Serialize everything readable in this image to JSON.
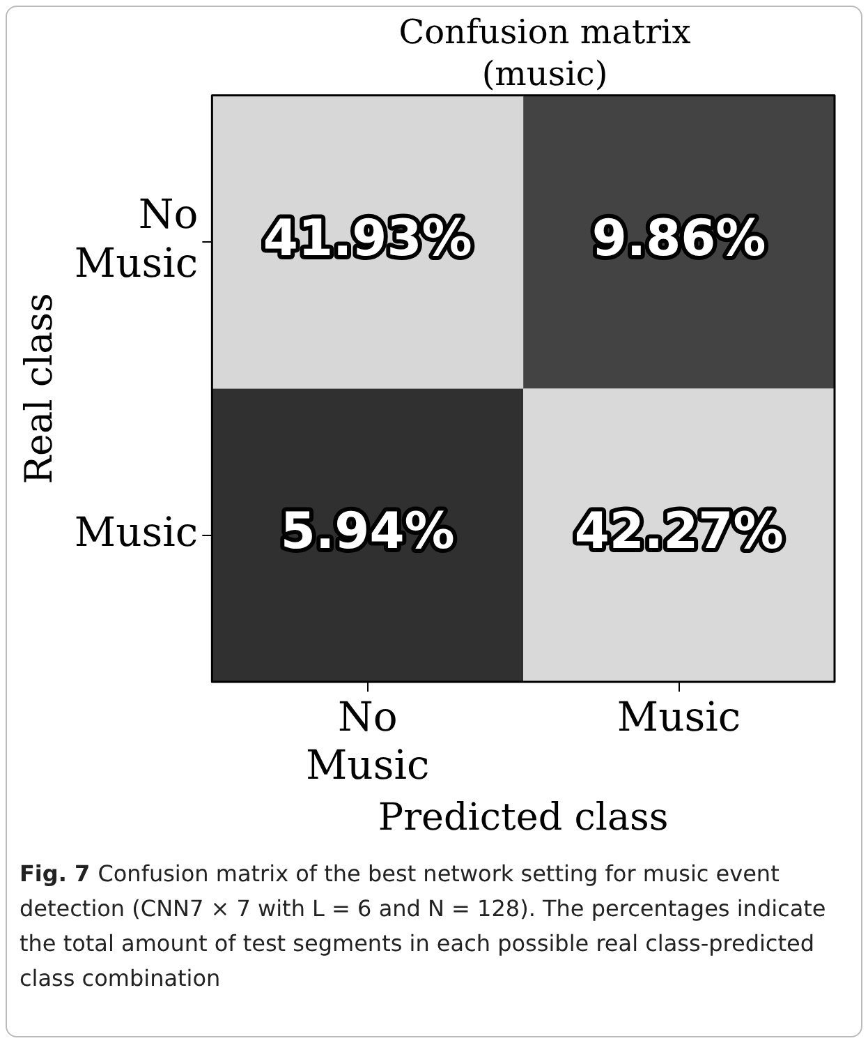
{
  "chart_data": {
    "type": "heatmap",
    "title": "Confusion matrix (music)",
    "xlabel": "Predicted class",
    "ylabel": "Real class",
    "categories": [
      "No Music",
      "Music"
    ],
    "y_categories": [
      "No Music",
      "Music"
    ],
    "cells": [
      [
        41.93,
        9.86
      ],
      [
        5.94,
        42.27
      ]
    ],
    "cell_labels": [
      [
        "41.93%",
        "9.86%"
      ],
      [
        "5.94%",
        "42.27%"
      ]
    ],
    "annotations": [
      "Fig. 7",
      "Confusion matrix of the best network setting for music event detection (CNN7 × 7 with L = 6 and N = 128). The percentages indicate the total amount of test segments in each possible real class-predicted class combination"
    ]
  }
}
